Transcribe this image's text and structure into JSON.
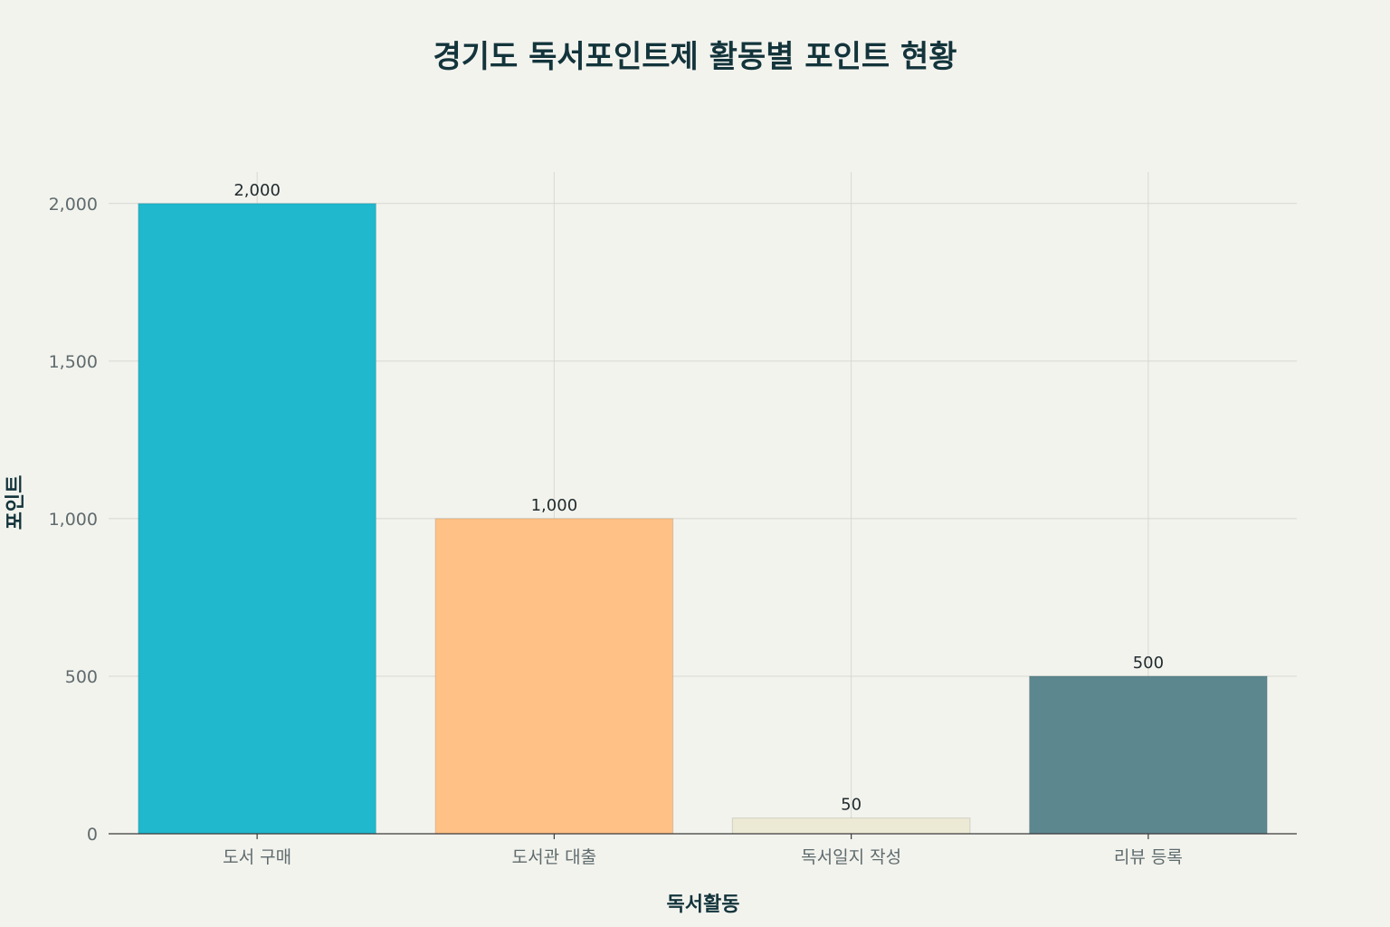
{
  "chart_data": {
    "type": "bar",
    "title": "경기도 독서포인트제 활동별 포인트 현황",
    "xlabel": "독서활동",
    "ylabel": "포인트",
    "categories": [
      "도서 구매",
      "도서관 대출",
      "독서일지 작성",
      "리뷰 등록"
    ],
    "values": [
      2000,
      1000,
      50,
      500
    ],
    "value_labels": [
      "2,000",
      "1,000",
      "50",
      "500"
    ],
    "colors": [
      "#1fb8cd",
      "#ffc185",
      "#ece9d5",
      "#5d878f"
    ],
    "ylim": [
      0,
      2100
    ],
    "yticks": [
      0,
      500,
      1000,
      1500,
      2000
    ],
    "ytick_labels": [
      "0",
      "500",
      "1,000",
      "1,500",
      "2,000"
    ],
    "grid": true,
    "legend": "none"
  }
}
